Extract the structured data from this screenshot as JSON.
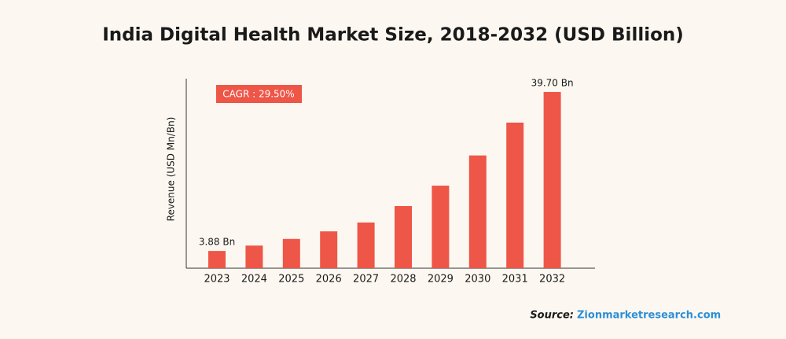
{
  "chart_data": {
    "type": "bar",
    "title": "India Digital Health Market Size, 2018-2032 (USD Billion)",
    "y_label": "Revenue (USD Mn/Bn)",
    "annotation": "CAGR : 29.50%",
    "source_label": "Source:",
    "source": "Zionmarketresearch.com",
    "categories": [
      "2023",
      "2024",
      "2025",
      "2026",
      "2027",
      "2028",
      "2029",
      "2030",
      "2031",
      "2032"
    ],
    "values": [
      3.88,
      5.1,
      6.6,
      8.3,
      10.3,
      14.0,
      18.6,
      25.4,
      32.8,
      39.7
    ],
    "value_labels": [
      "3.88 Bn",
      null,
      null,
      null,
      null,
      null,
      null,
      null,
      null,
      "39.70 Bn"
    ],
    "color": "#ee5647",
    "ylim": [
      0,
      42.7
    ]
  }
}
